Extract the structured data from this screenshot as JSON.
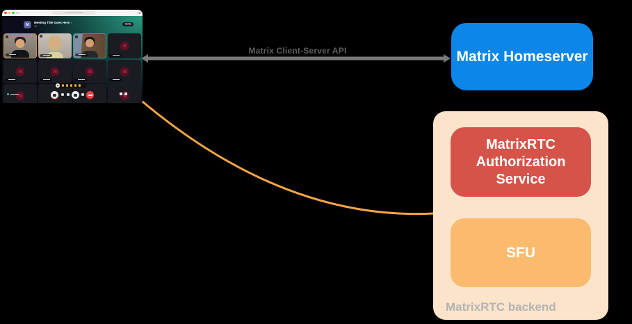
{
  "diagram": {
    "api_arrow": {
      "label": "Matrix Client-Server API"
    },
    "homeserver": {
      "label": "Matrix Homeserver"
    },
    "backend": {
      "label": "MatrixRTC backend",
      "auth": {
        "label": "MatrixRTC Authorization Service"
      },
      "sfu": {
        "label": "SFU"
      }
    }
  },
  "colors": {
    "page_bg": "#000000",
    "homeserver_bg": "#0c86e8",
    "auth_bg": "#d65349",
    "sfu_bg": "#fabb6e",
    "backend_bg": "#fce4cb",
    "backend_label": "#b3b3b3",
    "arrow": "#7a7a7a",
    "api_label": "#5f5f5f",
    "rtc_link": "#f5a445",
    "tl_red": "#f4574e",
    "tl_yellow": "#f6bd3e",
    "tl_green": "#38c948"
  },
  "call_app": {
    "title": "Meeting Title Goes Here",
    "verified_mark": "✓",
    "participant_count": "12",
    "invite_button": "Invite",
    "room_avatar_letter": "M",
    "avatar_letter": "N",
    "tiles": [
      {
        "kind": "person",
        "variant": "p1"
      },
      {
        "kind": "person",
        "variant": "p2"
      },
      {
        "kind": "person",
        "variant": "p3"
      },
      {
        "kind": "avatar"
      },
      {
        "kind": "avatar"
      },
      {
        "kind": "avatar"
      },
      {
        "kind": "avatar"
      },
      {
        "kind": "avatar"
      },
      {
        "kind": "avatar"
      },
      {
        "kind": "avatar"
      },
      {
        "kind": "avatar"
      },
      {
        "kind": "avatar"
      }
    ],
    "browser_nav": {
      "back": "‹",
      "forward": "›",
      "reload": "↻",
      "download": "↓",
      "new_tab": "+",
      "tabs": "⧉"
    }
  }
}
